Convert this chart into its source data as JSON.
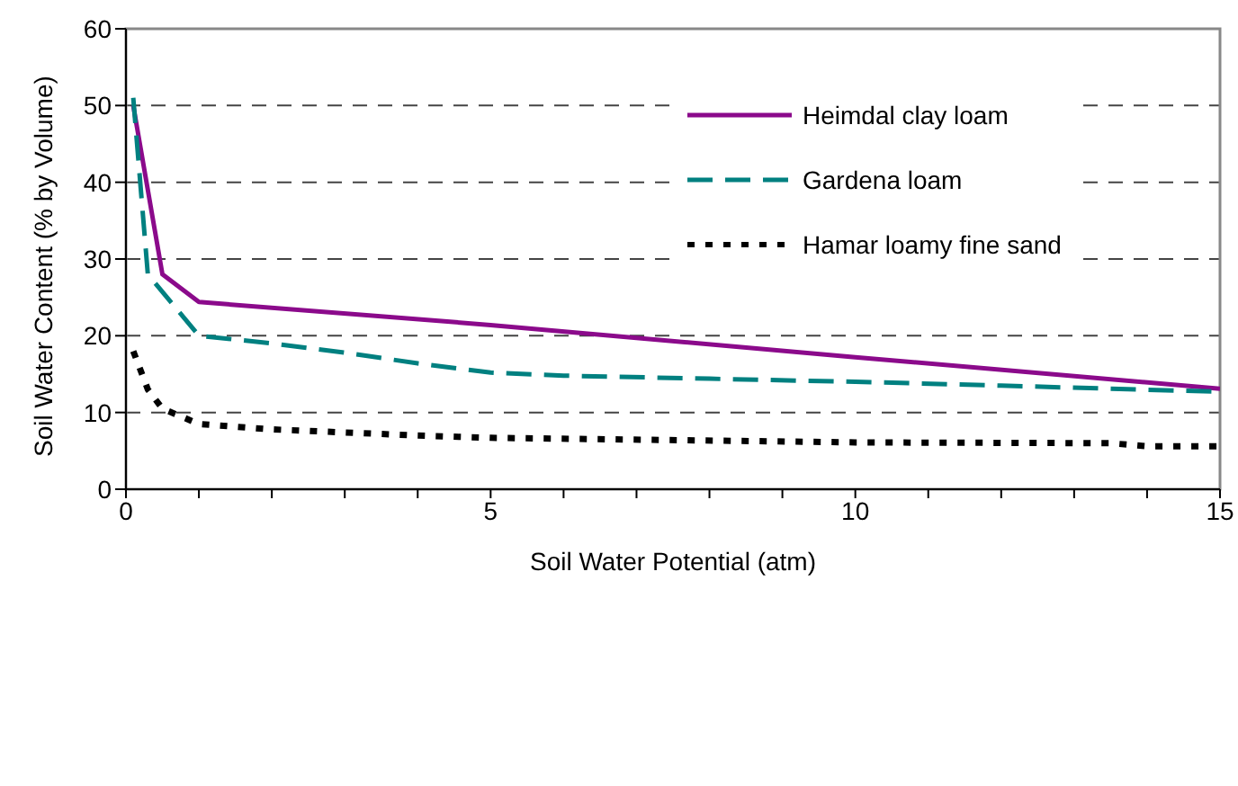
{
  "chart_data": {
    "type": "line",
    "xlabel": "Soil Water Potential (atm)",
    "ylabel": "Soil Water Content (% by Volume)",
    "xlim": [
      0,
      15
    ],
    "ylim": [
      0,
      60
    ],
    "xticks": [
      0,
      {
        "value": 1,
        "label": null
      },
      {
        "value": 2,
        "label": null
      },
      {
        "value": 3,
        "label": null
      },
      {
        "value": 4,
        "label": null
      },
      5,
      {
        "value": 6,
        "label": null
      },
      {
        "value": 7,
        "label": null
      },
      {
        "value": 8,
        "label": null
      },
      {
        "value": 9,
        "label": null
      },
      10,
      {
        "value": 11,
        "label": null
      },
      {
        "value": 12,
        "label": null
      },
      {
        "value": 13,
        "label": null
      },
      {
        "value": 14,
        "label": null
      },
      15
    ],
    "yticks": [
      0,
      10,
      20,
      30,
      40,
      50,
      60
    ],
    "grid": "y",
    "legend": "top right",
    "marker": "none",
    "series": [
      {
        "name": "Heimdal clay loam",
        "color": "#8b0a8b",
        "line_style": "solid",
        "x": [
          0.1,
          0.5,
          1,
          5,
          10,
          15
        ],
        "values": [
          50,
          28,
          24.4,
          21.4,
          17.2,
          13.1
        ]
      },
      {
        "name": "Gardena loam",
        "color": "#008080",
        "line_style": "dashed",
        "x": [
          0.1,
          0.3,
          1,
          2,
          3,
          4,
          5,
          6,
          8,
          10,
          12,
          15
        ],
        "values": [
          51,
          28,
          20,
          19,
          17.8,
          16.4,
          15.2,
          14.8,
          14.4,
          14,
          13.5,
          12.7
        ]
      },
      {
        "name": "Hamar loamy fine sand",
        "color": "#000000",
        "line_style": "dotted",
        "x": [
          0.1,
          0.3,
          0.5,
          1,
          2,
          4,
          5,
          10,
          13.5,
          14,
          15
        ],
        "values": [
          18,
          13,
          10.5,
          8.5,
          7.8,
          7,
          6.7,
          6.1,
          6,
          5.6,
          5.6
        ]
      }
    ]
  }
}
